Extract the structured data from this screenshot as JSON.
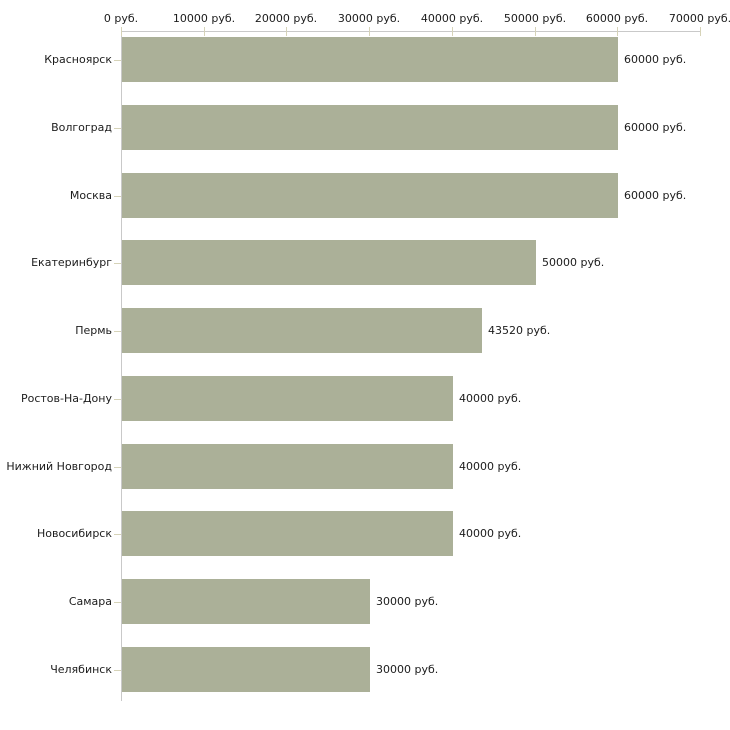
{
  "chart_data": {
    "type": "bar",
    "orientation": "horizontal",
    "unit": "руб.",
    "categories": [
      "Красноярск",
      "Волгоград",
      "Москва",
      "Екатеринбург",
      "Пермь",
      "Ростов-На-Дону",
      "Нижний Новгород",
      "Новосибирск",
      "Самара",
      "Челябинск"
    ],
    "values": [
      60000,
      60000,
      60000,
      50000,
      43520,
      40000,
      40000,
      40000,
      30000,
      30000
    ],
    "value_labels": [
      "60000 руб.",
      "60000 руб.",
      "60000 руб.",
      "50000 руб.",
      "43520 руб.",
      "40000 руб.",
      "40000 руб.",
      "40000 руб.",
      "30000 руб.",
      "30000 руб."
    ],
    "x_tick_values": [
      0,
      10000,
      20000,
      30000,
      40000,
      50000,
      60000,
      70000
    ],
    "x_tick_labels": [
      "0 руб.",
      "10000 руб.",
      "20000 руб.",
      "30000 руб.",
      "40000 руб.",
      "50000 руб.",
      "60000 руб.",
      "70000 руб."
    ],
    "xlim": [
      0,
      70000
    ],
    "grid": false,
    "legend": false,
    "colors": {
      "bar": "#abb098",
      "axis_line": "#c9c9c9",
      "tick_mark": "#d6d3b8",
      "text": "#1c1c1c",
      "background": "#ffffff"
    }
  }
}
